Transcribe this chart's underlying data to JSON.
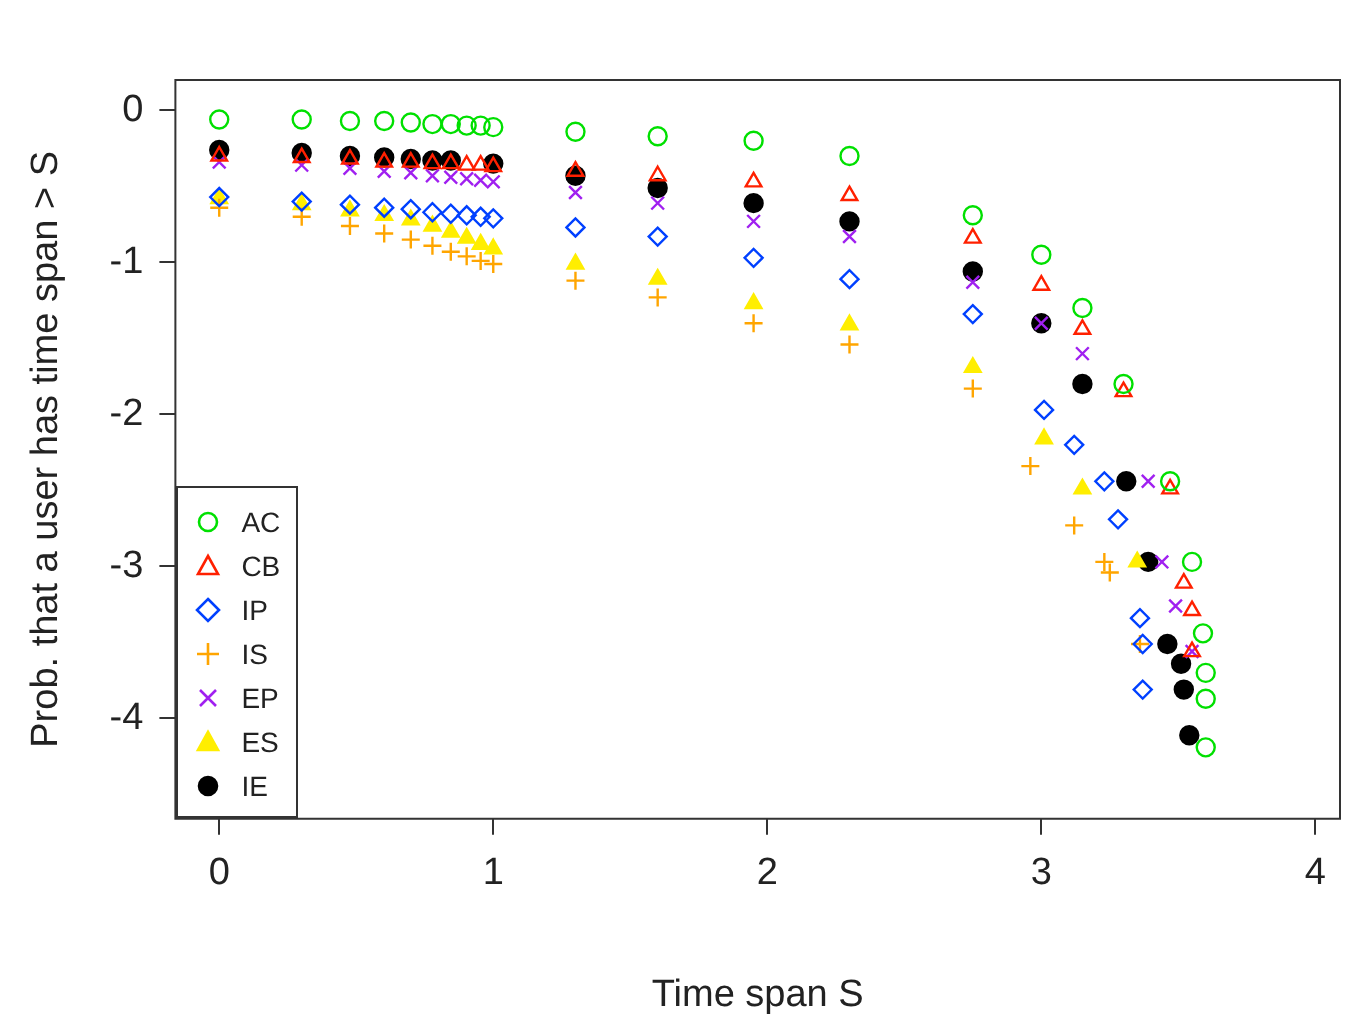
{
  "chart_data": {
    "type": "scatter",
    "xlabel": "Time span S",
    "ylabel": "Prob. that a user has time span > S",
    "xlim": [
      -0.16,
      4.09
    ],
    "ylim": [
      -4.66,
      0.2
    ],
    "xticks": [
      0,
      1,
      2,
      3,
      4
    ],
    "yticks": [
      0,
      -1,
      -2,
      -3,
      -4
    ],
    "grid": false,
    "legend": "bottom left",
    "series": [
      {
        "name": "AC",
        "color": "#00e000",
        "marker": "circle",
        "x": [
          0,
          0.301,
          0.477,
          0.602,
          0.699,
          0.778,
          0.845,
          0.903,
          0.954,
          1,
          1.3,
          1.6,
          1.95,
          2.3,
          2.75,
          3.0,
          3.15,
          3.3,
          3.47,
          3.55,
          3.59,
          3.6,
          3.6,
          3.6
        ],
        "values": [
          -0.06,
          -0.06,
          -0.07,
          -0.07,
          -0.08,
          -0.09,
          -0.09,
          -0.1,
          -0.1,
          -0.11,
          -0.14,
          -0.17,
          -0.2,
          -0.3,
          -0.69,
          -0.95,
          -1.3,
          -1.8,
          -2.44,
          -2.97,
          -3.44,
          -3.7,
          -3.87,
          -4.19
        ]
      },
      {
        "name": "CB",
        "color": "#ff2000",
        "marker": "triangle",
        "x": [
          0,
          0.301,
          0.477,
          0.602,
          0.699,
          0.778,
          0.845,
          0.903,
          0.954,
          1,
          1.3,
          1.6,
          1.95,
          2.3,
          2.75,
          3.0,
          3.15,
          3.3,
          3.47,
          3.52,
          3.55,
          3.55
        ],
        "values": [
          -0.3,
          -0.31,
          -0.32,
          -0.34,
          -0.34,
          -0.35,
          -0.35,
          -0.36,
          -0.36,
          -0.37,
          -0.4,
          -0.43,
          -0.47,
          -0.56,
          -0.84,
          -1.15,
          -1.44,
          -1.85,
          -2.49,
          -3.11,
          -3.29,
          -3.56
        ]
      },
      {
        "name": "IP",
        "color": "#0040ff",
        "marker": "diamond",
        "x": [
          0,
          0.301,
          0.477,
          0.602,
          0.699,
          0.778,
          0.845,
          0.903,
          0.954,
          1,
          1.3,
          1.6,
          1.95,
          2.3,
          2.75,
          3.01,
          3.12,
          3.23,
          3.28,
          3.36,
          3.37,
          3.37
        ],
        "values": [
          -0.57,
          -0.6,
          -0.62,
          -0.64,
          -0.65,
          -0.67,
          -0.68,
          -0.69,
          -0.7,
          -0.71,
          -0.77,
          -0.83,
          -0.97,
          -1.11,
          -1.34,
          -1.97,
          -2.2,
          -2.44,
          -2.69,
          -3.34,
          -3.51,
          -3.81
        ]
      },
      {
        "name": "IS",
        "color": "#ffa500",
        "marker": "cross",
        "x": [
          0,
          0.301,
          0.477,
          0.602,
          0.699,
          0.778,
          0.845,
          0.903,
          0.954,
          1,
          1.3,
          1.6,
          1.95,
          2.3,
          2.75,
          2.96,
          3.12,
          3.23,
          3.25,
          3.36
        ],
        "values": [
          -0.64,
          -0.7,
          -0.76,
          -0.81,
          -0.85,
          -0.89,
          -0.93,
          -0.96,
          -0.99,
          -1.01,
          -1.12,
          -1.23,
          -1.4,
          -1.54,
          -1.83,
          -2.34,
          -2.73,
          -2.97,
          -3.04,
          -3.51
        ]
      },
      {
        "name": "EP",
        "color": "#a020f0",
        "marker": "x",
        "x": [
          0,
          0.301,
          0.477,
          0.602,
          0.699,
          0.778,
          0.845,
          0.903,
          0.954,
          1,
          1.3,
          1.6,
          1.95,
          2.3,
          2.75,
          3.0,
          3.15,
          3.39,
          3.44,
          3.49,
          3.55
        ],
        "values": [
          -0.34,
          -0.36,
          -0.38,
          -0.4,
          -0.41,
          -0.43,
          -0.44,
          -0.45,
          -0.46,
          -0.47,
          -0.54,
          -0.61,
          -0.73,
          -0.83,
          -1.13,
          -1.4,
          -1.6,
          -2.44,
          -2.97,
          -3.26,
          -3.56
        ]
      },
      {
        "name": "ES",
        "color": "#ffee00",
        "marker": "triangle-filled",
        "x": [
          0,
          0.301,
          0.477,
          0.602,
          0.699,
          0.778,
          0.845,
          0.903,
          0.954,
          1,
          1.3,
          1.6,
          1.95,
          2.3,
          2.75,
          3.01,
          3.15,
          3.35
        ],
        "values": [
          -0.58,
          -0.62,
          -0.66,
          -0.69,
          -0.72,
          -0.76,
          -0.8,
          -0.84,
          -0.88,
          -0.91,
          -1.01,
          -1.11,
          -1.27,
          -1.41,
          -1.69,
          -2.16,
          -2.49,
          -2.97
        ]
      },
      {
        "name": "IE",
        "color": "#000000",
        "marker": "circle-filled",
        "x": [
          0,
          0.301,
          0.477,
          0.602,
          0.699,
          0.778,
          0.845,
          1,
          1.3,
          1.6,
          1.95,
          2.3,
          2.75,
          3.0,
          3.15,
          3.31,
          3.39,
          3.46,
          3.51,
          3.52,
          3.54
        ],
        "values": [
          -0.26,
          -0.28,
          -0.3,
          -0.31,
          -0.32,
          -0.33,
          -0.33,
          -0.35,
          -0.43,
          -0.51,
          -0.61,
          -0.73,
          -1.06,
          -1.4,
          -1.8,
          -2.44,
          -2.97,
          -3.51,
          -3.64,
          -3.81,
          -4.11
        ]
      }
    ]
  }
}
